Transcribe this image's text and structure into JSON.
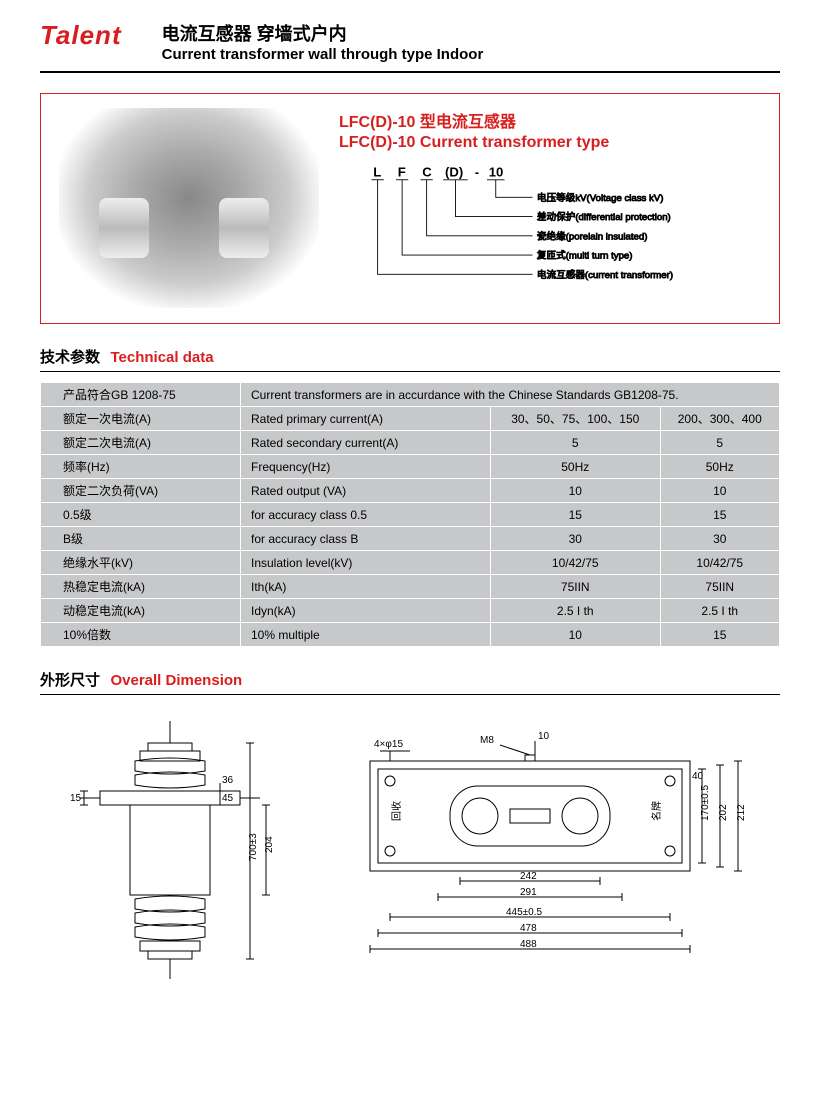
{
  "brand": "Talent",
  "header": {
    "title_cn": "电流互感器  穿墙式户内",
    "title_en": "Current transformer wall through type Indoor"
  },
  "product": {
    "title_cn": "LFC(D)-10 型电流互感器",
    "title_en": "LFC(D)-10 Current transformer type",
    "model_parts": [
      "L",
      "F",
      "C",
      "(D)",
      "-",
      "10"
    ],
    "decode": [
      {
        "label": "电压等级kV(Voltage class kV)"
      },
      {
        "label": "差动保护(differential protection)"
      },
      {
        "label": "瓷绝缘(porelain insulated)"
      },
      {
        "label": "复匝式(multi turn type)"
      },
      {
        "label": "电流互感器(current transformer)"
      }
    ]
  },
  "sections": {
    "tech_cn": "技术参数",
    "tech_en": "Technical data",
    "dim_cn": "外形尺寸",
    "dim_en": "Overall Dimension"
  },
  "tech_table": {
    "rows": [
      {
        "c1": "产品符合GB 1208-75",
        "c2": "Current transformers are in accurdance with the Chinese Standards GB1208-75.",
        "span": true
      },
      {
        "c1": "额定一次电流(A)",
        "c2": "Rated primary current(A)",
        "v1": "30、50、75、100、150",
        "v2": "200、300、400"
      },
      {
        "c1": "额定二次电流(A)",
        "c2": "Rated secondary current(A)",
        "v1": "5",
        "v2": "5"
      },
      {
        "c1": "频率(Hz)",
        "c2": "Frequency(Hz)",
        "v1": "50Hz",
        "v2": "50Hz"
      },
      {
        "c1": "额定二次负荷(VA)",
        "c2": "Rated output (VA)",
        "v1": "10",
        "v2": "10"
      },
      {
        "c1": "0.5级",
        "c2": "for accuracy class 0.5",
        "v1": "15",
        "v2": "15"
      },
      {
        "c1": "B级",
        "c2": "for accuracy class B",
        "v1": "30",
        "v2": "30"
      },
      {
        "c1": "绝缘水平(kV)",
        "c2": "Insulation level(kV)",
        "v1": "10/42/75",
        "v2": "10/42/75"
      },
      {
        "c1": "热稳定电流(kA)",
        "c2": "Ith(kA)",
        "v1": "75IIN",
        "v2": "75IIN"
      },
      {
        "c1": "动稳定电流(kA)",
        "c2": "Idyn(kA)",
        "v1": "2.5 I th",
        "v2": "2.5 I th"
      },
      {
        "c1": "10%倍数",
        "c2": "10% multiple",
        "v1": "10",
        "v2": "15"
      }
    ]
  },
  "dimensions": {
    "side": {
      "labels": [
        "15",
        "36",
        "45",
        "204",
        "700±3"
      ]
    },
    "top": {
      "labels": [
        "4×φ15",
        "M8",
        "10",
        "40",
        "170±0.5",
        "202",
        "212",
        "242",
        "291",
        "445±0.5",
        "478",
        "488"
      ],
      "text_labels": [
        "回收",
        "名牌"
      ]
    }
  },
  "colors": {
    "accent": "#d81e1e",
    "table_bg": "#c7c8ca",
    "text": "#000000",
    "bg": "#ffffff"
  }
}
